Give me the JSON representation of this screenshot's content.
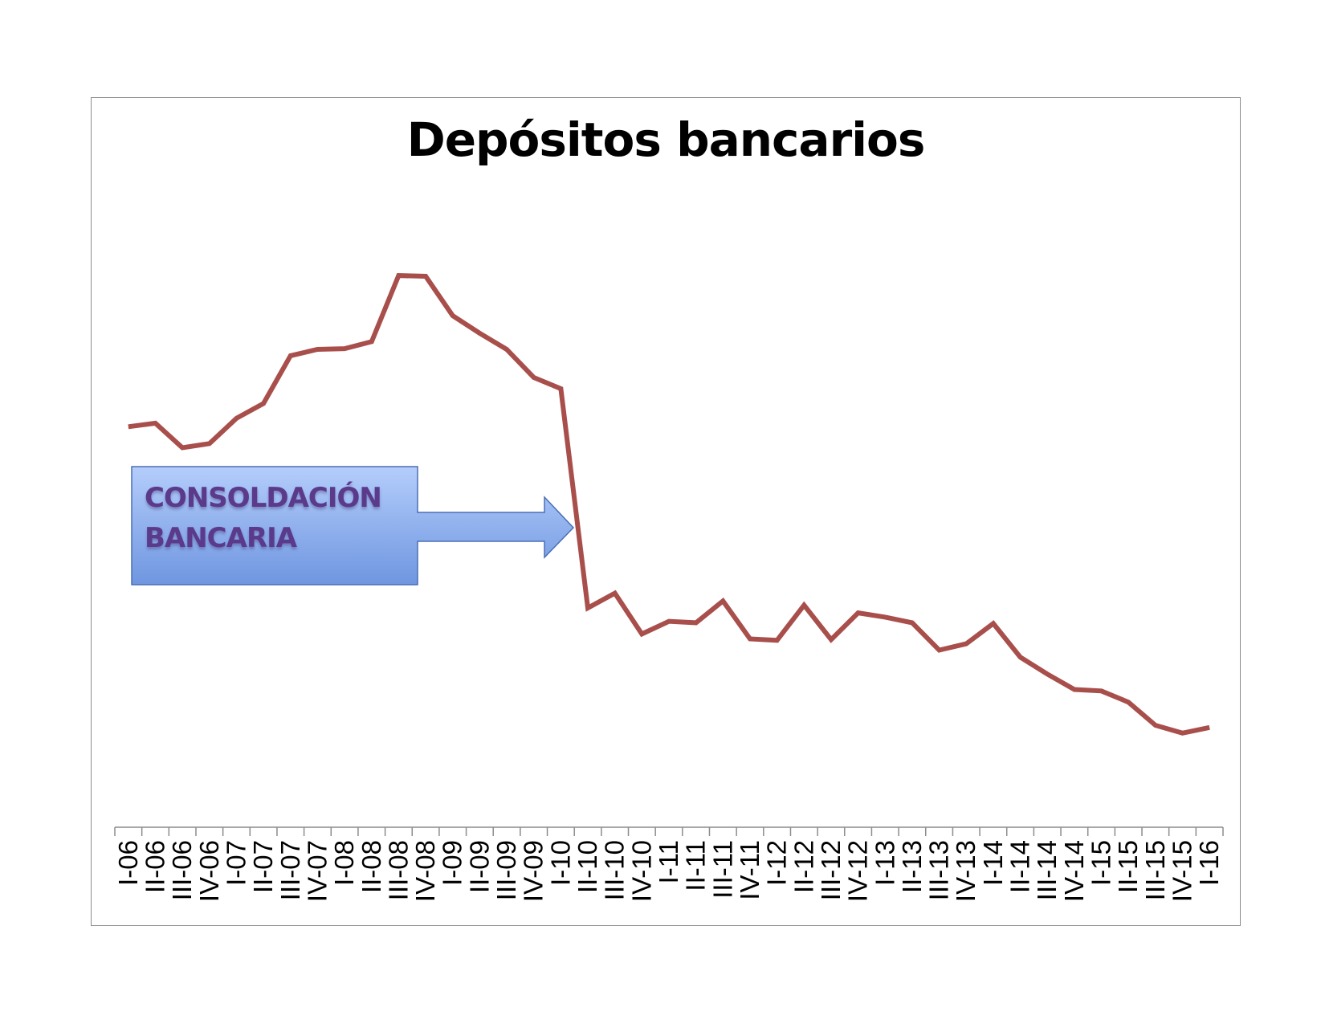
{
  "chart_data": {
    "type": "line",
    "title": "Depósitos bancarios",
    "xlabel": "",
    "ylabel": "",
    "ylim": [
      0,
      100
    ],
    "grid": false,
    "legend": "none",
    "categories": [
      "I-06",
      "II-06",
      "III-06",
      "IV-06",
      "I-07",
      "II-07",
      "III-07",
      "IV-07",
      "I-08",
      "II-08",
      "III-08",
      "IV-08",
      "I-09",
      "II-09",
      "III-09",
      "IV-09",
      "I-10",
      "II-10",
      "III-10",
      "IV-10",
      "I-11",
      "II-11",
      "III-11",
      "IV-11",
      "I-12",
      "II-12",
      "III-12",
      "IV-12",
      "I-13",
      "II-13",
      "III-13",
      "IV-13",
      "I-14",
      "II-14",
      "III-14",
      "IV-14",
      "I-15",
      "II-15",
      "III-15",
      "IV-15",
      "I-16"
    ],
    "series": [
      {
        "color": "#a84f4c",
        "values": [
          57,
          57.5,
          54,
          54.6,
          58.2,
          60.3,
          67.1,
          68,
          68.1,
          69.1,
          78.5,
          78.4,
          72.8,
          70.3,
          68,
          64,
          62.4,
          31.2,
          33.3,
          27.5,
          29.3,
          29.1,
          32.2,
          26.8,
          26.6,
          31.6,
          26.7,
          30.5,
          29.9,
          29.1,
          25.2,
          26.1,
          29,
          24.2,
          21.8,
          19.6,
          19.4,
          17.8,
          14.5,
          13.4,
          14.2
        ]
      }
    ],
    "annotations": [
      {
        "text_lines": [
          "CONSOLDACIÓN",
          "BANCARIA"
        ],
        "points_to": "I-10"
      }
    ]
  },
  "colors": {
    "line": "#a84f4c",
    "callout_fill_top": "#b4cdfb",
    "callout_fill_bottom": "#6f96e0",
    "callout_border": "#4a6fb5",
    "callout_text": "#5b3a8c"
  }
}
